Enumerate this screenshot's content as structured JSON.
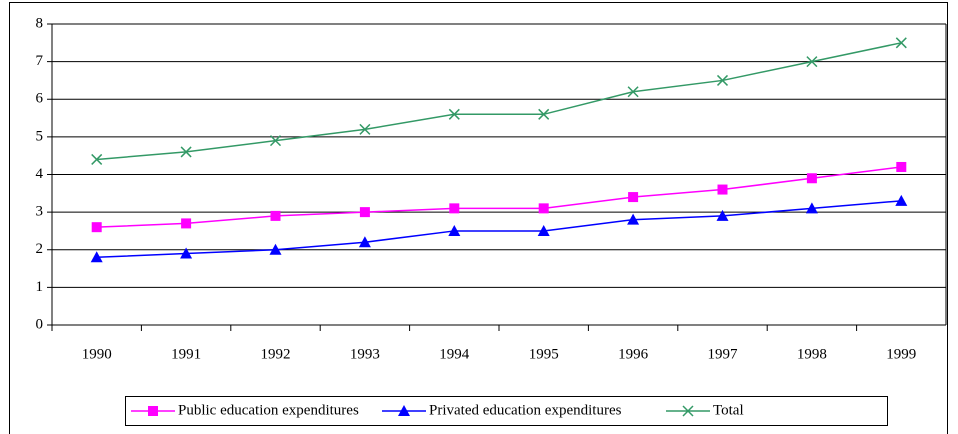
{
  "chart_data": {
    "type": "line",
    "categories": [
      "1990",
      "1991",
      "1992",
      "1993",
      "1994",
      "1995",
      "1996",
      "1997",
      "1998",
      "1999"
    ],
    "series": [
      {
        "name": "Public education expenditures",
        "color": "#ff00ff",
        "marker": "square",
        "values": [
          2.6,
          2.7,
          2.9,
          3.0,
          3.1,
          3.1,
          3.4,
          3.6,
          3.9,
          4.2
        ]
      },
      {
        "name": "Privated education expenditures",
        "color": "#0000ff",
        "marker": "triangle",
        "values": [
          1.8,
          1.9,
          2.0,
          2.2,
          2.5,
          2.5,
          2.8,
          2.9,
          3.1,
          3.3
        ]
      },
      {
        "name": "Total",
        "color": "#339966",
        "marker": "x",
        "values": [
          4.4,
          4.6,
          4.9,
          5.2,
          5.6,
          5.6,
          6.2,
          6.5,
          7.0,
          7.5
        ]
      }
    ],
    "ylim": [
      0,
      8
    ],
    "yticks": [
      0,
      1,
      2,
      3,
      4,
      5,
      6,
      7,
      8
    ],
    "grid": true,
    "legend": "bottom"
  }
}
